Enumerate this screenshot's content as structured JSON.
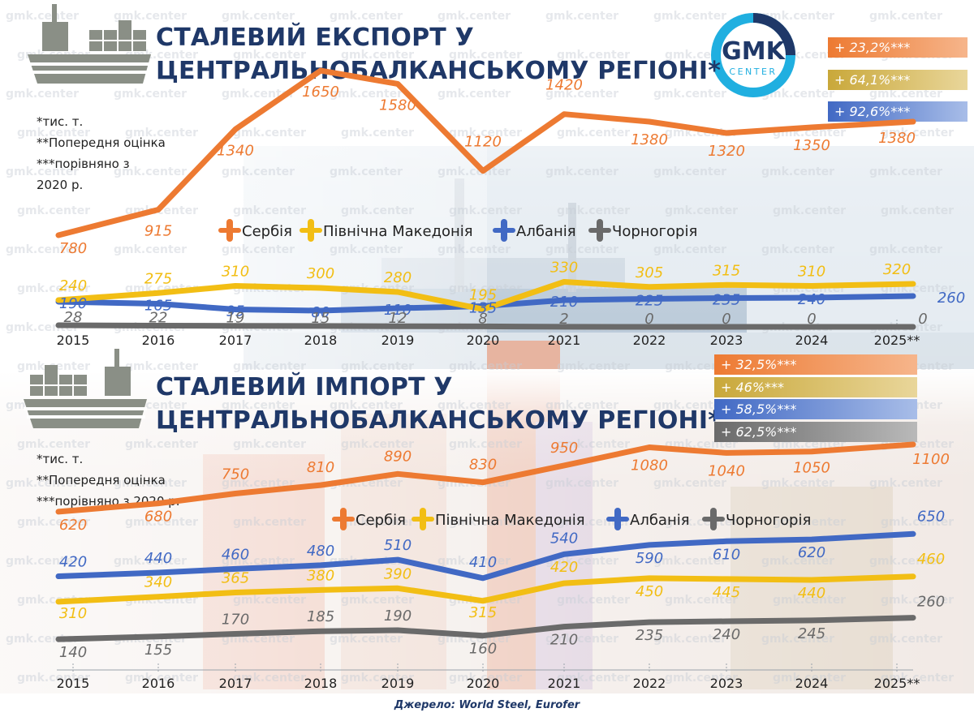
{
  "brand": {
    "logo_main": "GMK",
    "logo_sub": "CENTER",
    "watermark": "gmk.center",
    "navy": "#1f3868"
  },
  "colors": {
    "serbia": "#ed7a32",
    "north_macedonia": "#f2be14",
    "albania": "#4169c4",
    "montenegro": "#6a6a6a"
  },
  "export": {
    "title_line1": "СТАЛЕВИЙ ЕКСПОРТ У",
    "title_line2": "ЦЕНТРАЛЬНОБАЛКАНСЬКОМУ РЕГІОНІ*",
    "notes": [
      "*тис. т.",
      "**Попередня оцінка",
      "***порівняно з",
      "2020 р."
    ],
    "badges": [
      "+ 23,2%***",
      "+ 64,1%***",
      "+ 92,6%***"
    ]
  },
  "import": {
    "title_line1": "СТАЛЕВИЙ ІМПОРТ У",
    "title_line2": "ЦЕНТРАЛЬНОБАЛКАНСЬКОМУ РЕГІОНІ*",
    "notes": [
      "*тис. т.",
      "**Попередня оцінка",
      "***порівняно з 2020 р."
    ],
    "badges": [
      "+ 32,5%***",
      "+ 46%***",
      "+ 58,5%***",
      "+ 62,5%***"
    ]
  },
  "source": "Джерело: World Steel, Eurofer",
  "chart_data": [
    {
      "type": "line",
      "title": "СТАЛЕВИЙ ЕКСПОРТ У ЦЕНТРАЛЬНОБАЛКАНСЬКОМУ РЕГІОНІ*",
      "unit": "тис. т.",
      "categories": [
        "2015",
        "2016",
        "2017",
        "2018",
        "2019",
        "2020",
        "2021",
        "2022",
        "2023",
        "2024",
        "2025**"
      ],
      "legend": [
        "Сербія",
        "Північна Македонія",
        "Албанія",
        "Чорногорія"
      ],
      "legend_position": "middle",
      "series": [
        {
          "name": "Сербія",
          "values": [
            780,
            915,
            1340,
            1650,
            1580,
            1120,
            1420,
            1380,
            1320,
            1350,
            1380
          ],
          "labels": [
            "780",
            "915",
            "1340",
            "1650",
            "1580",
            "1120",
            "1420",
            "1380",
            "1320",
            "1350",
            "1380"
          ]
        },
        {
          "name": "Північна Македонія",
          "values": [
            240,
            275,
            310,
            300,
            280,
            195,
            330,
            305,
            315,
            310,
            320
          ],
          "labels": [
            "240",
            "275",
            "310",
            "300",
            "280",
            "195",
            "330",
            "305",
            "315",
            "310",
            "320"
          ]
        },
        {
          "name": "Албанія",
          "values": [
            190,
            165,
            95,
            80,
            110,
            135,
            210,
            225,
            235,
            240,
            260
          ],
          "labels": [
            "190",
            "165",
            "95",
            "80",
            "110",
            "135",
            "210",
            "225",
            "235",
            "240",
            "260"
          ]
        },
        {
          "name": "Чорногорія",
          "values": [
            28,
            22,
            19,
            15,
            12,
            8,
            2,
            0,
            0,
            0,
            0
          ],
          "labels": [
            "28",
            "22",
            "19",
            "15",
            "12",
            "8",
            "2",
            "0",
            "0",
            "0",
            "0"
          ]
        }
      ],
      "change_vs_2020": [
        "+ 23,2%***",
        "+ 64,1%***",
        "+ 92,6%***"
      ],
      "grid": false
    },
    {
      "type": "line",
      "title": "СТАЛЕВИЙ ІМПОРТ У ЦЕНТРАЛЬНОБАЛКАНСЬКОМУ РЕГІОНІ*",
      "unit": "тис. т.",
      "categories": [
        "2015",
        "2016",
        "2017",
        "2018",
        "2019",
        "2020",
        "2021",
        "2022",
        "2023",
        "2024",
        "2025**"
      ],
      "legend": [
        "Сербія",
        "Північна Македонія",
        "Албанія",
        "Чорногорія"
      ],
      "legend_position": "middle",
      "series": [
        {
          "name": "Сербія",
          "values": [
            620,
            680,
            750,
            810,
            890,
            830,
            950,
            1080,
            1040,
            1050,
            1100
          ],
          "labels": [
            "620",
            "680",
            "750",
            "810",
            "890",
            "830",
            "950",
            "1080",
            "1040",
            "1050",
            "1100"
          ]
        },
        {
          "name": "Албанія",
          "values": [
            420,
            440,
            460,
            480,
            510,
            410,
            540,
            590,
            610,
            620,
            650
          ],
          "labels": [
            "420",
            "440",
            "460",
            "480",
            "510",
            "410",
            "540",
            "590",
            "610",
            "620",
            "650"
          ]
        },
        {
          "name": "Північна Македонія",
          "values": [
            310,
            340,
            365,
            380,
            390,
            315,
            420,
            450,
            445,
            440,
            460
          ],
          "labels": [
            "310",
            "340",
            "365",
            "380",
            "390",
            "315",
            "420",
            "450",
            "445",
            "440",
            "460"
          ]
        },
        {
          "name": "Чорногорія",
          "values": [
            140,
            155,
            170,
            185,
            190,
            160,
            210,
            235,
            240,
            245,
            260
          ],
          "labels": [
            "140",
            "155",
            "170",
            "185",
            "190",
            "160",
            "210",
            "235",
            "240",
            "245",
            "260"
          ]
        }
      ],
      "change_vs_2020": [
        "+ 32,5%***",
        "+ 46%***",
        "+ 58,5%***",
        "+ 62,5%***"
      ],
      "grid": false
    }
  ]
}
